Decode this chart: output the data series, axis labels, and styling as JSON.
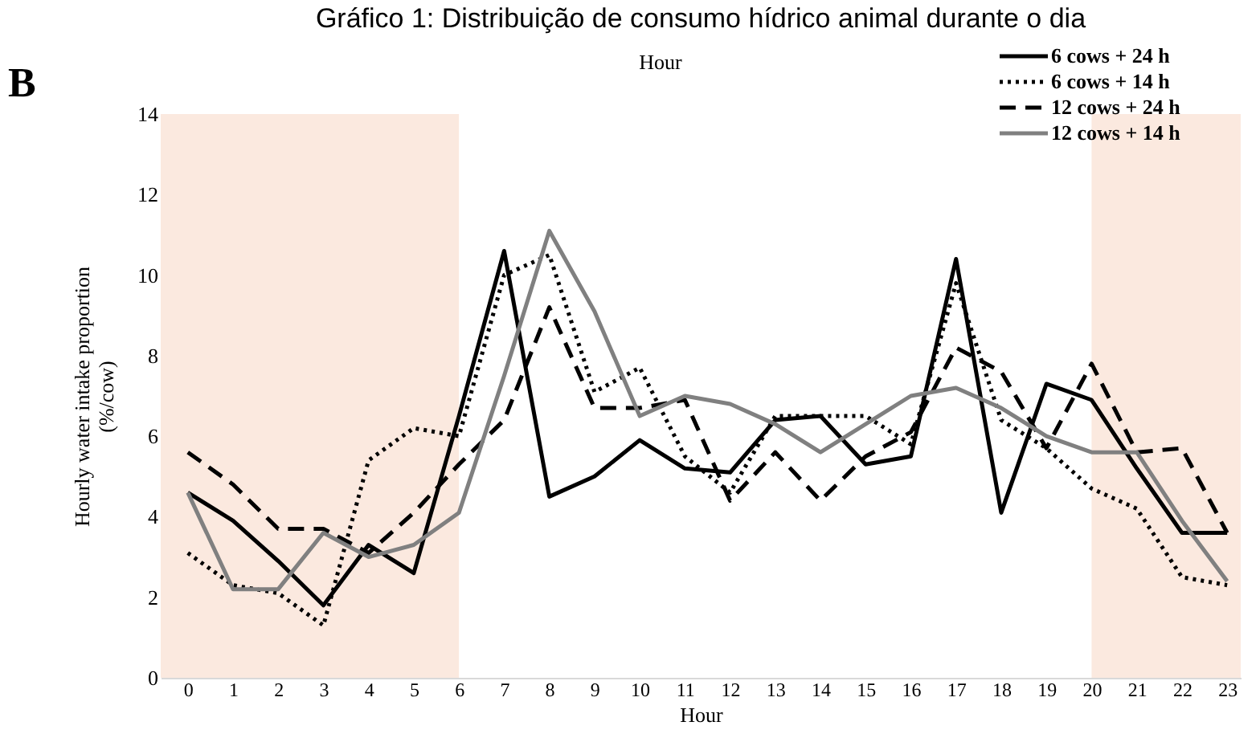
{
  "chart_data": {
    "type": "line",
    "title": "Gráfico 1: Distribuição de consumo hídrico animal durante o dia",
    "xlabel": "Hour",
    "ylabel": "Hourly water intake proportion\n(%/cow)",
    "annotations": [
      "B",
      "Hour"
    ],
    "x": [
      0,
      1,
      2,
      3,
      4,
      5,
      6,
      7,
      8,
      9,
      10,
      11,
      12,
      13,
      14,
      15,
      16,
      17,
      18,
      19,
      20,
      21,
      22,
      23
    ],
    "xlim": [
      -0.6,
      23.3
    ],
    "xticks": [
      0,
      1,
      2,
      3,
      4,
      5,
      6,
      7,
      8,
      9,
      10,
      11,
      12,
      13,
      14,
      15,
      16,
      17,
      18,
      19,
      20,
      21,
      22,
      23
    ],
    "ylim": [
      0,
      14
    ],
    "yticks": [
      0,
      2,
      4,
      6,
      8,
      10,
      12,
      14
    ],
    "grid": false,
    "legend": "top right",
    "bands": [
      {
        "axis": "x",
        "from": -0.6,
        "to": 6,
        "color": "#fbe9df"
      },
      {
        "axis": "x",
        "from": 20,
        "to": 23.3,
        "color": "#fbe9df"
      }
    ],
    "series": [
      {
        "name": "6 cows + 24 h",
        "color": "#000000",
        "line_style": "solid",
        "values": [
          4.6,
          3.9,
          2.9,
          1.8,
          3.3,
          2.6,
          6.5,
          10.6,
          4.5,
          5.0,
          5.9,
          5.2,
          5.1,
          6.4,
          6.5,
          5.3,
          5.5,
          10.4,
          4.1,
          7.3,
          6.9,
          5.2,
          3.6,
          3.6
        ]
      },
      {
        "name": "6 cows + 14 h",
        "color": "#000000",
        "line_style": "dotted",
        "values": [
          3.1,
          2.3,
          2.1,
          1.3,
          5.4,
          6.2,
          6.0,
          10.0,
          10.5,
          7.1,
          7.7,
          5.5,
          4.6,
          6.5,
          6.5,
          6.5,
          5.8,
          9.8,
          6.4,
          5.7,
          4.7,
          4.2,
          2.5,
          2.3
        ]
      },
      {
        "name": "12 cows + 24 h",
        "color": "#000000",
        "line_style": "dashed",
        "values": [
          5.6,
          4.8,
          3.7,
          3.7,
          3.1,
          4.1,
          5.3,
          6.4,
          9.2,
          6.7,
          6.7,
          6.9,
          4.4,
          5.6,
          4.4,
          5.5,
          6.1,
          8.2,
          7.6,
          5.7,
          7.8,
          5.6,
          5.7,
          3.6
        ]
      },
      {
        "name": "12 cows + 14 h",
        "color": "#808080",
        "line_style": "solid",
        "values": [
          4.6,
          2.2,
          2.2,
          3.6,
          3.0,
          3.3,
          4.1,
          7.5,
          11.1,
          9.1,
          6.5,
          7.0,
          6.8,
          6.3,
          5.6,
          6.3,
          7.0,
          7.2,
          6.7,
          6.0,
          5.6,
          5.6,
          3.9,
          2.4
        ]
      }
    ]
  }
}
